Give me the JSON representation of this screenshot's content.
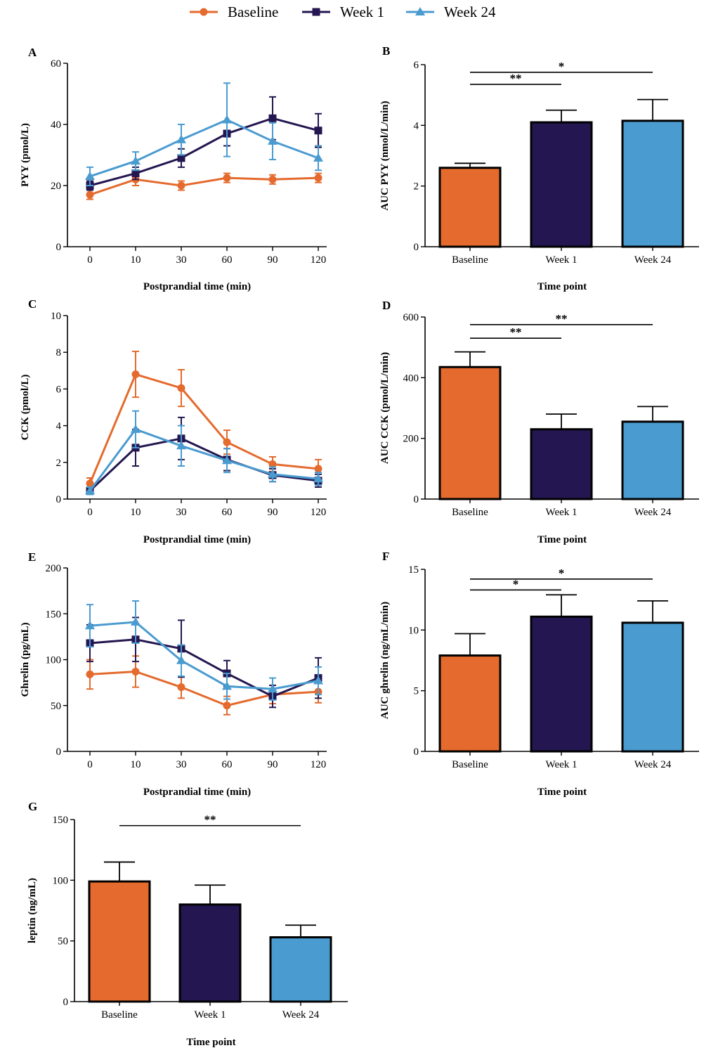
{
  "legend": {
    "position": "top-center",
    "entries": [
      {
        "name": "Baseline",
        "color": "#E46A2D",
        "marker": "circle"
      },
      {
        "name": "Week 1",
        "color": "#241650",
        "marker": "square"
      },
      {
        "name": "Week 24",
        "color": "#4A9BD0",
        "marker": "triangle"
      }
    ]
  },
  "chart_data": [
    {
      "panel": "A",
      "type": "line",
      "xlabel": "Postprandial time (min)",
      "ylabel": "PYY (pmol/L)",
      "categories": [
        "0",
        "10",
        "30",
        "60",
        "90",
        "120"
      ],
      "ylim": [
        0,
        60
      ],
      "yticks": [
        0,
        20,
        40,
        60
      ],
      "series": [
        {
          "name": "Baseline",
          "values": [
            17,
            22,
            20,
            22.5,
            22,
            22.5
          ],
          "errors": [
            1.5,
            2,
            1.5,
            1.5,
            1.5,
            1.5
          ]
        },
        {
          "name": "Week 1",
          "values": [
            20,
            24,
            29,
            37,
            42,
            38
          ],
          "errors": [
            1.5,
            2,
            3,
            4,
            7,
            5.5
          ]
        },
        {
          "name": "Week 24",
          "values": [
            23,
            28,
            35,
            41.5,
            34.5,
            29
          ],
          "errors": [
            3,
            3,
            5,
            12,
            6,
            4
          ]
        }
      ]
    },
    {
      "panel": "B",
      "type": "bar",
      "xlabel": "Time point",
      "ylabel": "AUC PYY (nmol/L/min)",
      "categories": [
        "Baseline",
        "Week 1",
        "Week 24"
      ],
      "values": [
        2.6,
        4.1,
        4.15
      ],
      "errors": [
        0.15,
        0.4,
        0.7
      ],
      "ylim": [
        0,
        6
      ],
      "yticks": [
        0,
        2,
        4,
        6
      ],
      "significance": [
        {
          "from": 0,
          "to": 1,
          "label": "**",
          "y": 5.35
        },
        {
          "from": 0,
          "to": 2,
          "label": "*",
          "y": 5.75
        }
      ]
    },
    {
      "panel": "C",
      "type": "line",
      "xlabel": "Postprandial time (min)",
      "ylabel": "CCK (pmol/L)",
      "categories": [
        "0",
        "10",
        "30",
        "60",
        "90",
        "120"
      ],
      "ylim": [
        0,
        10
      ],
      "yticks": [
        0,
        2,
        4,
        6,
        8,
        10
      ],
      "series": [
        {
          "name": "Baseline",
          "values": [
            0.85,
            6.8,
            6.05,
            3.1,
            1.9,
            1.65
          ],
          "errors": [
            0.3,
            1.25,
            1.0,
            0.65,
            0.4,
            0.5
          ]
        },
        {
          "name": "Week 1",
          "values": [
            0.45,
            2.8,
            3.3,
            2.15,
            1.3,
            1.0
          ],
          "errors": [
            0.2,
            1.0,
            1.15,
            0.6,
            0.35,
            0.35
          ]
        },
        {
          "name": "Week 24",
          "values": [
            0.45,
            3.8,
            2.9,
            2.1,
            1.35,
            1.1
          ],
          "errors": [
            0.2,
            1.0,
            1.1,
            0.65,
            0.4,
            0.35
          ]
        }
      ]
    },
    {
      "panel": "D",
      "type": "bar",
      "xlabel": "Time point",
      "ylabel": "AUC CCK (pmol/L/min)",
      "categories": [
        "Baseline",
        "Week 1",
        "Week 24"
      ],
      "values": [
        435,
        230,
        255
      ],
      "errors": [
        50,
        50,
        50
      ],
      "ylim": [
        0,
        600
      ],
      "yticks": [
        0,
        200,
        400,
        600
      ],
      "significance": [
        {
          "from": 0,
          "to": 1,
          "label": "**",
          "y": 530
        },
        {
          "from": 0,
          "to": 2,
          "label": "**",
          "y": 575
        }
      ]
    },
    {
      "panel": "E",
      "type": "line",
      "xlabel": "Postprandial time (min)",
      "ylabel": "Ghrelin (pg/mL)",
      "categories": [
        "0",
        "10",
        "30",
        "60",
        "90",
        "120"
      ],
      "ylim": [
        0,
        200
      ],
      "yticks": [
        0,
        50,
        100,
        150,
        200
      ],
      "series": [
        {
          "name": "Baseline",
          "values": [
            84,
            87,
            70,
            50,
            62,
            65
          ],
          "errors": [
            16,
            17,
            12,
            10,
            10,
            12
          ]
        },
        {
          "name": "Week 1",
          "values": [
            118,
            122,
            112,
            85,
            60,
            80
          ],
          "errors": [
            20,
            24,
            31,
            14,
            12,
            22
          ]
        },
        {
          "name": "Week 24",
          "values": [
            137,
            141,
            99,
            71,
            68,
            77
          ],
          "errors": [
            23,
            23,
            17,
            14,
            12,
            15
          ]
        }
      ]
    },
    {
      "panel": "F",
      "type": "bar",
      "xlabel": "Time point",
      "ylabel": "AUC ghrelin (ng/mL/min)",
      "categories": [
        "Baseline",
        "Week 1",
        "Week 24"
      ],
      "values": [
        7.9,
        11.1,
        10.6
      ],
      "errors": [
        1.8,
        1.8,
        1.8
      ],
      "ylim": [
        0,
        15
      ],
      "yticks": [
        0,
        5,
        10,
        15
      ],
      "significance": [
        {
          "from": 0,
          "to": 1,
          "label": "*",
          "y": 13.3
        },
        {
          "from": 0,
          "to": 2,
          "label": "*",
          "y": 14.2
        }
      ]
    },
    {
      "panel": "G",
      "type": "bar",
      "xlabel": "Time point",
      "ylabel": "leptin (ng/mL)",
      "categories": [
        "Baseline",
        "Week 1",
        "Week 24"
      ],
      "values": [
        99,
        80,
        53
      ],
      "errors": [
        16,
        16,
        10
      ],
      "ylim": [
        0,
        150
      ],
      "yticks": [
        0,
        50,
        100,
        150
      ],
      "significance": [
        {
          "from": 0,
          "to": 2,
          "label": "**",
          "y": 145
        }
      ]
    }
  ]
}
